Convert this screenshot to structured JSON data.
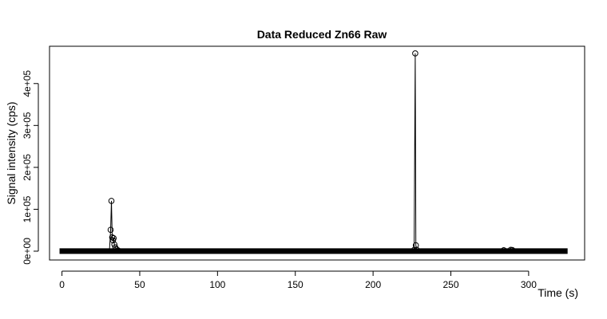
{
  "chart_data": {
    "type": "line",
    "title": "Data Reduced Zn66 Raw",
    "xlabel": "Time (s)",
    "ylabel": "Signal intensity (cps)",
    "xlim": [
      -8,
      336
    ],
    "ylim": [
      -21000,
      489000
    ],
    "x_ticks": [
      0,
      50,
      100,
      150,
      200,
      250,
      300
    ],
    "x_tick_labels": [
      "0",
      "50",
      "100",
      "150",
      "200",
      "250",
      "300"
    ],
    "y_ticks": [
      0,
      100000,
      200000,
      300000,
      400000
    ],
    "y_tick_labels": [
      "0e+00",
      "1e+05",
      "2e+05",
      "3e+05",
      "4e+05"
    ],
    "grid": false,
    "series_style": "points-and-lines (open circles)",
    "baseline": {
      "x_start": 0.5,
      "x_end": 323,
      "y": 200
    },
    "peaks": [
      {
        "x": 31.3,
        "y": 51000
      },
      {
        "x": 31.8,
        "y": 120000
      },
      {
        "x": 32.3,
        "y": 33000
      },
      {
        "x": 32.8,
        "y": 26000
      },
      {
        "x": 33.2,
        "y": 31000
      },
      {
        "x": 33.7,
        "y": 16000
      },
      {
        "x": 34.3,
        "y": 9000
      },
      {
        "x": 35.0,
        "y": 4500
      },
      {
        "x": 36.0,
        "y": 2000
      },
      {
        "x": 226.4,
        "y": 3000
      },
      {
        "x": 227.1,
        "y": 472000
      },
      {
        "x": 227.5,
        "y": 14000
      },
      {
        "x": 228.0,
        "y": 3500
      },
      {
        "x": 284.0,
        "y": 2300
      },
      {
        "x": 288.5,
        "y": 3200
      },
      {
        "x": 289.5,
        "y": 2600
      }
    ]
  }
}
